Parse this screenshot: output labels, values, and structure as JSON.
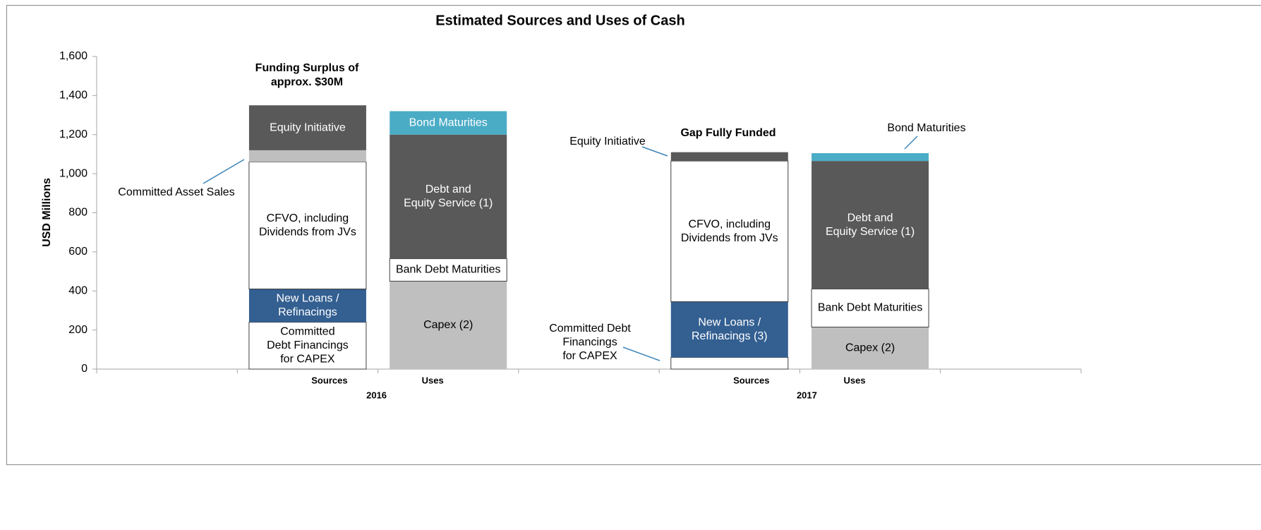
{
  "chart_data": {
    "type": "bar",
    "stacked": true,
    "title": "Estimated Sources and Uses of Cash",
    "y_label": "USD Millions",
    "ylim": [
      0,
      1600
    ],
    "yticks": [
      0,
      200,
      400,
      600,
      800,
      {
        "value": 1000,
        "label": "1,000"
      },
      {
        "value": 1200,
        "label": "1,200"
      },
      {
        "value": 1400,
        "label": "1,400"
      },
      {
        "value": 1600,
        "label": "1,600"
      }
    ],
    "annotations": [
      {
        "lines": [
          "Funding Surplus of",
          "approx. $30M"
        ]
      },
      {
        "lines": [
          "Gap Fully Funded"
        ]
      }
    ],
    "groups": [
      {
        "name": "2016",
        "bars": [
          {
            "name": "Sources",
            "segments": [
              {
                "label": [
                  "Committed",
                  "Debt Financings",
                  "for CAPEX"
                ],
                "value": 240,
                "color": "#ffffff"
              },
              {
                "label": [
                  "New Loans /",
                  "Refinacings"
                ],
                "value": 170,
                "color": "#335f91"
              },
              {
                "label": [
                  "CFVO, including",
                  "Dividends from JVs"
                ],
                "value": 650,
                "color": "#ffffff"
              },
              {
                "label": [
                  "Committed Asset Sales"
                ],
                "value": 60,
                "color": "#bfbfbf",
                "label_outside": true
              },
              {
                "label": [
                  "Equity Initiative"
                ],
                "value": 230,
                "color": "#595959"
              }
            ]
          },
          {
            "name": "Uses",
            "segments": [
              {
                "label": [
                  "Capex (2)"
                ],
                "value": 450,
                "color": "#bfbfbf"
              },
              {
                "label": [
                  "Bank Debt Maturities"
                ],
                "value": 115,
                "color": "#ffffff"
              },
              {
                "label": [
                  "Debt and",
                  "Equity Service (1)"
                ],
                "value": 635,
                "color": "#595959"
              },
              {
                "label": [
                  "Bond Maturities"
                ],
                "value": 120,
                "color": "#4bacc6"
              }
            ]
          }
        ]
      },
      {
        "name": "2017",
        "bars": [
          {
            "name": "Sources",
            "segments": [
              {
                "label": [
                  "Committed Debt",
                  "Financings",
                  "for CAPEX"
                ],
                "value": 60,
                "color": "#ffffff",
                "label_outside": true
              },
              {
                "label": [
                  "New Loans /",
                  "Refinacings (3)"
                ],
                "value": 285,
                "color": "#335f91"
              },
              {
                "label": [
                  "CFVO, including",
                  "Dividends from JVs"
                ],
                "value": 720,
                "color": "#ffffff"
              },
              {
                "label": [
                  "Equity Initiative"
                ],
                "value": 45,
                "color": "#595959",
                "label_outside": true
              }
            ]
          },
          {
            "name": "Uses",
            "segments": [
              {
                "label": [
                  "Capex (2)"
                ],
                "value": 215,
                "color": "#bfbfbf"
              },
              {
                "label": [
                  "Bank Debt Maturities"
                ],
                "value": 195,
                "color": "#ffffff"
              },
              {
                "label": [
                  "Debt and",
                  "Equity Service (1)"
                ],
                "value": 655,
                "color": "#595959"
              },
              {
                "label": [
                  "Bond Maturities"
                ],
                "value": 40,
                "color": "#4bacc6",
                "label_outside": true
              }
            ]
          }
        ]
      }
    ]
  }
}
